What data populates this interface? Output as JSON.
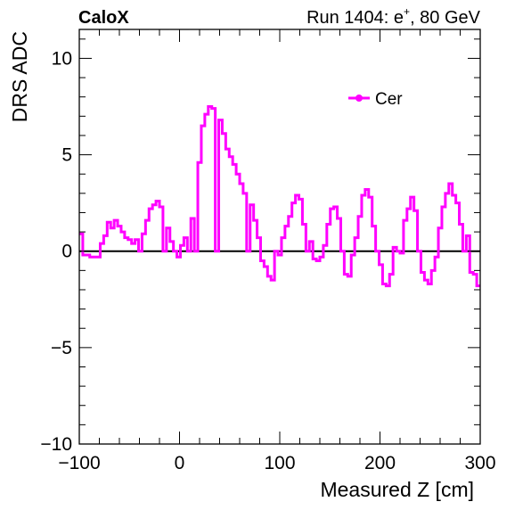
{
  "header": {
    "brand": "CaloX",
    "run_label": "Run 1404: e",
    "run_sup": "+",
    "run_energy": ", 80 GeV"
  },
  "chart_data": {
    "type": "line",
    "style": "step histogram",
    "xlabel": "Measured Z [cm]",
    "ylabel": "DRS ADC",
    "xlim": [
      -100,
      300
    ],
    "ylim": [
      -10,
      11.5
    ],
    "x_ticks": [
      "−100",
      "0",
      "100",
      "200",
      "300"
    ],
    "y_ticks": [
      "−10",
      "−5",
      "0",
      "5",
      "10"
    ],
    "x_tick_values": [
      -100,
      0,
      100,
      200,
      300
    ],
    "y_tick_values": [
      -10,
      -5,
      0,
      5,
      10
    ],
    "zero_line": true,
    "grid": false,
    "legend_position": "top-right",
    "series": [
      {
        "name": "Cer",
        "color": "#ff00ff",
        "bin_edges": [
          -100,
          300
        ],
        "values": [
          0.9,
          -0.2,
          -0.2,
          -0.3,
          -0.3,
          -0.3,
          0.4,
          0.8,
          1.5,
          1.2,
          1.6,
          1.3,
          1.0,
          0.7,
          0.6,
          0.4,
          0.6,
          0.0,
          0.9,
          1.6,
          2.2,
          2.4,
          2.6,
          2.3,
          0.0,
          1.2,
          0.5,
          0.0,
          -0.3,
          0.3,
          0.7,
          0.0,
          1.7,
          0.0,
          4.6,
          6.5,
          7.1,
          7.5,
          7.4,
          0.0,
          6.8,
          6.1,
          5.3,
          4.9,
          4.5,
          4.0,
          3.5,
          3.0,
          0.0,
          2.4,
          1.6,
          0.7,
          -0.5,
          -0.8,
          -1.3,
          -1.5,
          0.0,
          -0.2,
          0.7,
          1.3,
          1.8,
          2.5,
          2.9,
          2.7,
          1.4,
          0.0,
          0.5,
          -0.4,
          -0.5,
          -0.3,
          0.3,
          1.4,
          2.2,
          2.3,
          1.7,
          0.0,
          -1.2,
          -1.3,
          -0.2,
          0.7,
          1.8,
          2.9,
          3.2,
          2.8,
          1.3,
          0.0,
          -0.7,
          -1.7,
          -1.8,
          -1.2,
          0.2,
          0.0,
          -0.1,
          1.6,
          2.2,
          2.8,
          2.1,
          0.0,
          -1.1,
          -1.5,
          -1.7,
          -1.0,
          -0.3,
          1.2,
          2.3,
          3.0,
          3.5,
          2.9,
          2.5,
          1.4,
          0.0,
          0.8,
          -1.1,
          -1.2,
          -1.8
        ]
      }
    ]
  }
}
